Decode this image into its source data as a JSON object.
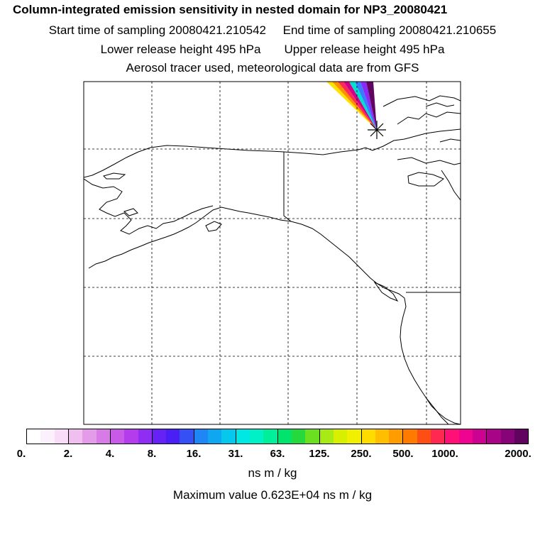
{
  "header": {
    "title": "Column-integrated emission sensitivity in nested domain for NP3_20080421",
    "start_label": "Start time of sampling 20080421.210542",
    "end_label": "End time of sampling 20080421.210655",
    "lower_label": "Lower release height  495 hPa",
    "upper_label": "Upper release height  495 hPa",
    "tracer_label": "Aerosol tracer used, meteorological data are from GFS"
  },
  "colorbar": {
    "colors": [
      "#ffffff",
      "#fdf0fd",
      "#f8dcf8",
      "#f0bff0",
      "#e59ce8",
      "#d97be6",
      "#c95ae8",
      "#b43cec",
      "#8f2ef2",
      "#6622f5",
      "#4a1ff5",
      "#3550f5",
      "#1f86f5",
      "#0fa8f0",
      "#05c8ec",
      "#00e8e4",
      "#00f0c8",
      "#00ef9a",
      "#00e36c",
      "#25d83c",
      "#6ae020",
      "#a8ea14",
      "#d8f000",
      "#f0f000",
      "#ffdc00",
      "#ffbe00",
      "#ff9c00",
      "#ff7a00",
      "#ff4e14",
      "#ff2850",
      "#ff1076",
      "#ee0490",
      "#cc0290",
      "#a80488",
      "#860478",
      "#600460"
    ],
    "tick_labels": [
      "0.",
      "2.",
      "4.",
      "8.",
      "16.",
      "31.",
      "63.",
      "125.",
      "250.",
      "500.",
      "1000.",
      "2000."
    ],
    "units": "ns m / kg"
  },
  "footer": {
    "max_value": "Maximum value  0.623E+04 ns m / kg"
  },
  "map": {
    "frame_color": "#000000",
    "plume_colors": [
      "#ffe200",
      "#ff9000",
      "#ff2a58",
      "#d00088",
      "#00e0d0",
      "#3a7cff",
      "#8a2af5",
      "#600460"
    ],
    "release_marker": "asterisk-marker"
  }
}
